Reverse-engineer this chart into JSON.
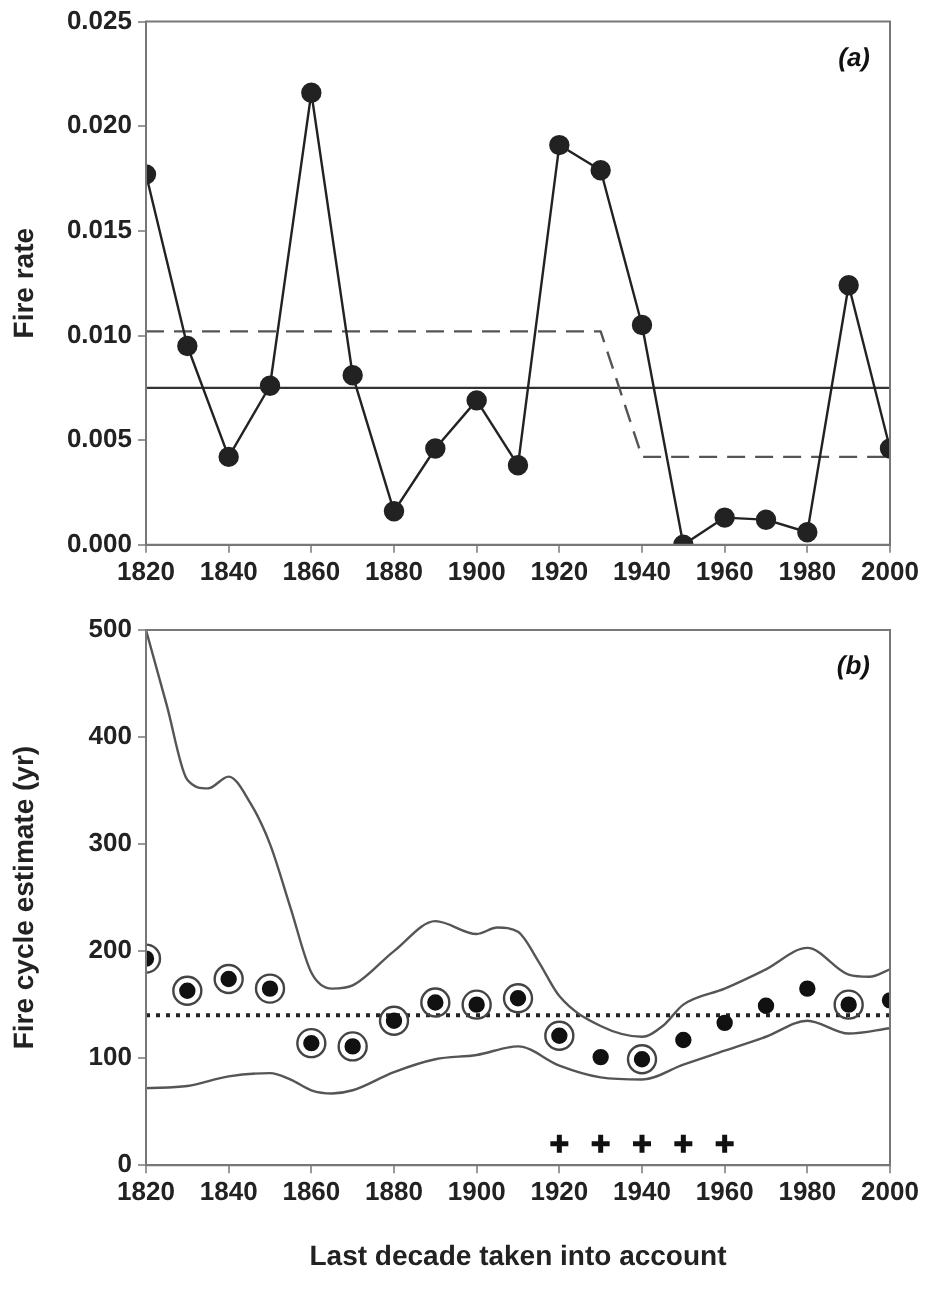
{
  "chart_data": [
    {
      "type": "line",
      "ylabel": "Fire rate",
      "annotations": [
        "(a)"
      ],
      "xlim": [
        1820,
        2000
      ],
      "xticks": [
        1820,
        1840,
        1860,
        1880,
        1900,
        1920,
        1940,
        1960,
        1980,
        2000
      ],
      "ylim": [
        0,
        0.025
      ],
      "yticks": [
        {
          "value": 0,
          "label": "0.000"
        },
        {
          "value": 0.005,
          "label": "0.005"
        },
        {
          "value": 0.01,
          "label": "0.010"
        },
        {
          "value": 0.015,
          "label": "0.015"
        },
        {
          "value": 0.02,
          "label": "0.020"
        },
        {
          "value": 0.025,
          "label": "0.025"
        }
      ],
      "grid": false,
      "legend": false,
      "ref_lines": [
        {
          "axis": "y",
          "value": 0.0075,
          "color": "#333333",
          "line_style": "solid"
        }
      ],
      "series": [
        {
          "color": "#222222",
          "marker": "circle",
          "line_style": "solid",
          "x": [
            1820,
            1830,
            1840,
            1850,
            1860,
            1870,
            1880,
            1890,
            1900,
            1910,
            1920,
            1930,
            1940,
            1950,
            1960,
            1970,
            1980,
            1990,
            2000
          ],
          "values": [
            0.0177,
            0.0095,
            0.0042,
            0.0076,
            0.0216,
            0.0081,
            0.0016,
            0.0046,
            0.0069,
            0.0038,
            0.0191,
            0.0179,
            0.0105,
            0.0,
            0.0013,
            0.0012,
            0.0006,
            0.0124,
            0.0046
          ]
        },
        {
          "color": "#555555",
          "marker": "none",
          "line_style": "dashed",
          "x": [
            1820,
            1930,
            1940,
            2000
          ],
          "values": [
            0.0102,
            0.0102,
            0.0042,
            0.0042
          ]
        }
      ]
    },
    {
      "type": "scatter",
      "ylabel": "Fire cycle estimate (yr)",
      "xlabel": "Last decade taken into account",
      "annotations": [
        "(b)"
      ],
      "xlim": [
        1820,
        2000
      ],
      "xticks": [
        1820,
        1840,
        1860,
        1880,
        1900,
        1920,
        1940,
        1960,
        1980,
        2000
      ],
      "ylim": [
        0,
        500
      ],
      "yticks": [
        0,
        100,
        200,
        300,
        400,
        500
      ],
      "grid": false,
      "legend": false,
      "ref_lines": [
        {
          "axis": "y",
          "value": 140,
          "color": "#222222",
          "line_style": "dotted"
        }
      ],
      "series": [
        {
          "type": "line",
          "color": "#555555",
          "marker": "none",
          "line_style": "solid",
          "x": [
            1820,
            1825,
            1830,
            1835,
            1840,
            1845,
            1850,
            1855,
            1860,
            1865,
            1870,
            1880,
            1890,
            1900,
            1905,
            1910,
            1915,
            1920,
            1930,
            1940,
            1945,
            1950,
            1960,
            1970,
            1980,
            1990,
            1995,
            2000
          ],
          "values": [
            500,
            430,
            360,
            352,
            363,
            340,
            300,
            240,
            180,
            165,
            168,
            200,
            228,
            216,
            222,
            218,
            190,
            158,
            130,
            120,
            130,
            150,
            165,
            183,
            203,
            178,
            176,
            183
          ]
        },
        {
          "type": "line",
          "color": "#555555",
          "marker": "none",
          "line_style": "solid",
          "x": [
            1820,
            1830,
            1840,
            1850,
            1855,
            1860,
            1865,
            1870,
            1880,
            1890,
            1900,
            1910,
            1920,
            1930,
            1940,
            1950,
            1960,
            1970,
            1980,
            1990,
            2000
          ],
          "values": [
            72,
            74,
            83,
            86,
            80,
            70,
            67,
            70,
            87,
            99,
            103,
            111,
            93,
            82,
            80,
            94,
            107,
            120,
            135,
            123,
            128
          ]
        },
        {
          "color": "#111111",
          "marker": "circle",
          "x": [
            1820,
            1830,
            1840,
            1850,
            1860,
            1870,
            1880,
            1890,
            1900,
            1910,
            1920,
            1930,
            1940,
            1950,
            1960,
            1970,
            1980,
            1990,
            2000
          ],
          "values": [
            193,
            163,
            174,
            165,
            114,
            111,
            135,
            152,
            150,
            156,
            121,
            101,
            99,
            117,
            133,
            149,
            165,
            150,
            154
          ]
        },
        {
          "color": "#444444",
          "marker": "circle",
          "x": [
            1820,
            1830,
            1840,
            1850,
            1860,
            1870,
            1880,
            1890,
            1900,
            1910,
            1920,
            1940,
            1990
          ],
          "values": [
            193,
            163,
            174,
            165,
            114,
            111,
            135,
            152,
            150,
            156,
            121,
            99,
            150
          ]
        },
        {
          "color": "#111111",
          "marker": "cross",
          "x": [
            1920,
            1930,
            1940,
            1950,
            1960
          ],
          "values": [
            20,
            20,
            20,
            20,
            20
          ]
        }
      ]
    }
  ]
}
